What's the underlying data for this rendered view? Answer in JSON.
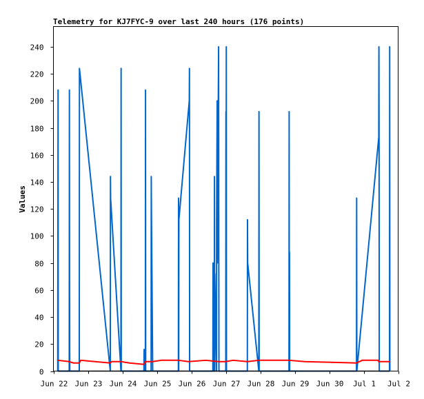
{
  "chart_data": {
    "type": "line",
    "title": "Telemetry for KJ7FYC-9 over last 240 hours (176 points)",
    "xlabel": "",
    "ylabel": "Values",
    "xlim": [
      "2023-06-22T00:00",
      "2023-07-02T00:00"
    ],
    "ylim": [
      0,
      255
    ],
    "y_ticks": [
      0,
      20,
      40,
      60,
      80,
      100,
      120,
      140,
      160,
      180,
      200,
      220,
      240
    ],
    "x_ticks": [
      {
        "label": "Jun 22",
        "x": "2023-06-22T00:00"
      },
      {
        "label": "Jun 23",
        "x": "2023-06-23T00:00"
      },
      {
        "label": "Jun 24",
        "x": "2023-06-24T00:00"
      },
      {
        "label": "Jun 25",
        "x": "2023-06-25T00:00"
      },
      {
        "label": "Jun 26",
        "x": "2023-06-26T00:00"
      },
      {
        "label": "Jun 27",
        "x": "2023-06-27T00:00"
      },
      {
        "label": "Jun 28",
        "x": "2023-06-28T00:00"
      },
      {
        "label": "Jun 29",
        "x": "2023-06-29T00:00"
      },
      {
        "label": "Jun 30",
        "x": "2023-06-30T00:00"
      },
      {
        "label": "Jul 1",
        "x": "2023-07-01T00:00"
      },
      {
        "label": "Jul 2",
        "x": "2023-07-02T00:00"
      }
    ],
    "grid": false,
    "legend": "none",
    "series": [
      {
        "color": "#0066cc",
        "points": [
          [
            "2023-06-22T03:00",
            0
          ],
          [
            "2023-06-22T03:07",
            105
          ],
          [
            "2023-06-22T03:14",
            208
          ],
          [
            "2023-06-22T03:21",
            0
          ],
          [
            "2023-06-22T11:00",
            0
          ],
          [
            "2023-06-22T11:07",
            208
          ],
          [
            "2023-06-22T11:14",
            64
          ],
          [
            "2023-06-22T11:21",
            0
          ],
          [
            "2023-06-22T18:00",
            0
          ],
          [
            "2023-06-22T18:07",
            224
          ],
          [
            "2023-06-23T15:35",
            0
          ],
          [
            "2023-06-23T15:42",
            144
          ],
          [
            "2023-06-23T15:49",
            128
          ],
          [
            "2023-06-23T23:00",
            0
          ],
          [
            "2023-06-23T23:07",
            224
          ],
          [
            "2023-06-23T23:14",
            0
          ],
          [
            "2023-06-24T15:00",
            0
          ],
          [
            "2023-06-24T15:07",
            16
          ],
          [
            "2023-06-24T15:14",
            0
          ],
          [
            "2023-06-24T16:00",
            0
          ],
          [
            "2023-06-24T16:07",
            208
          ],
          [
            "2023-06-24T16:14",
            0
          ],
          [
            "2023-06-24T20:00",
            0
          ],
          [
            "2023-06-24T20:07",
            144
          ],
          [
            "2023-06-24T20:14",
            120
          ],
          [
            "2023-06-24T21:00",
            16
          ],
          [
            "2023-06-24T21:07",
            0
          ],
          [
            "2023-06-25T15:00",
            0
          ],
          [
            "2023-06-25T15:07",
            128
          ],
          [
            "2023-06-25T15:14",
            0
          ],
          [
            "2023-06-25T15:21",
            112
          ],
          [
            "2023-06-25T22:35",
            200
          ],
          [
            "2023-06-25T22:42",
            224
          ],
          [
            "2023-06-25T22:49",
            0
          ],
          [
            "2023-06-26T15:00",
            0
          ],
          [
            "2023-06-26T15:07",
            80
          ],
          [
            "2023-06-26T15:14",
            0
          ],
          [
            "2023-06-26T16:00",
            0
          ],
          [
            "2023-06-26T16:07",
            144
          ],
          [
            "2023-06-26T16:14",
            0
          ],
          [
            "2023-06-26T16:21",
            72
          ],
          [
            "2023-06-26T17:30",
            0
          ],
          [
            "2023-06-26T17:37",
            112
          ],
          [
            "2023-06-26T18:00",
            200
          ],
          [
            "2023-06-26T18:07",
            80
          ],
          [
            "2023-06-26T19:00",
            240
          ],
          [
            "2023-06-26T19:07",
            96
          ],
          [
            "2023-06-26T19:14",
            0
          ],
          [
            "2023-06-27T00:00",
            0
          ],
          [
            "2023-06-27T00:07",
            192
          ],
          [
            "2023-06-27T00:14",
            0
          ],
          [
            "2023-06-27T00:21",
            240
          ],
          [
            "2023-06-27T00:28",
            0
          ],
          [
            "2023-06-27T15:00",
            0
          ],
          [
            "2023-06-27T15:07",
            112
          ],
          [
            "2023-06-27T15:14",
            80
          ],
          [
            "2023-06-27T23:00",
            0
          ],
          [
            "2023-06-27T23:07",
            192
          ],
          [
            "2023-06-27T23:14",
            0
          ],
          [
            "2023-06-28T20:00",
            0
          ],
          [
            "2023-06-28T20:07",
            192
          ],
          [
            "2023-06-28T20:14",
            0
          ],
          [
            "2023-06-28T20:21",
            88
          ],
          [
            "2023-06-28T20:28",
            0
          ],
          [
            "2023-06-30T19:00",
            0
          ],
          [
            "2023-06-30T19:07",
            128
          ],
          [
            "2023-06-30T19:14",
            0
          ],
          [
            "2023-07-01T10:30",
            173
          ],
          [
            "2023-07-01T10:37",
            240
          ],
          [
            "2023-07-01T10:44",
            168
          ],
          [
            "2023-07-01T10:51",
            0
          ],
          [
            "2023-07-01T18:00",
            0
          ],
          [
            "2023-07-01T18:07",
            240
          ],
          [
            "2023-07-01T18:14",
            0
          ]
        ]
      },
      {
        "color": "#ff0000",
        "points": [
          [
            "2023-06-22T03:00",
            8
          ],
          [
            "2023-06-22T11:00",
            7
          ],
          [
            "2023-06-22T14:00",
            6
          ],
          [
            "2023-06-22T18:00",
            6
          ],
          [
            "2023-06-22T19:00",
            8
          ],
          [
            "2023-06-23T15:30",
            6
          ],
          [
            "2023-06-23T16:30",
            7
          ],
          [
            "2023-06-23T23:00",
            7
          ],
          [
            "2023-06-24T05:00",
            6
          ],
          [
            "2023-06-24T15:00",
            5
          ],
          [
            "2023-06-24T16:00",
            7
          ],
          [
            "2023-06-24T21:00",
            7
          ],
          [
            "2023-06-25T03:00",
            8
          ],
          [
            "2023-06-25T15:00",
            8
          ],
          [
            "2023-06-25T22:00",
            7
          ],
          [
            "2023-06-26T10:00",
            8
          ],
          [
            "2023-06-26T19:00",
            7
          ],
          [
            "2023-06-27T00:00",
            7
          ],
          [
            "2023-06-27T05:00",
            8
          ],
          [
            "2023-06-27T15:00",
            7
          ],
          [
            "2023-06-27T23:00",
            8
          ],
          [
            "2023-06-28T20:00",
            8
          ],
          [
            "2023-06-29T07:00",
            7
          ],
          [
            "2023-06-30T19:00",
            6
          ],
          [
            "2023-06-30T23:00",
            8
          ],
          [
            "2023-07-01T10:00",
            8
          ],
          [
            "2023-07-01T10:30",
            7
          ],
          [
            "2023-07-01T18:00",
            7
          ]
        ]
      },
      {
        "color": "#000000",
        "points": [
          [
            "2023-06-22T03:00",
            0
          ],
          [
            "2023-07-01T18:00",
            0
          ]
        ]
      }
    ]
  }
}
